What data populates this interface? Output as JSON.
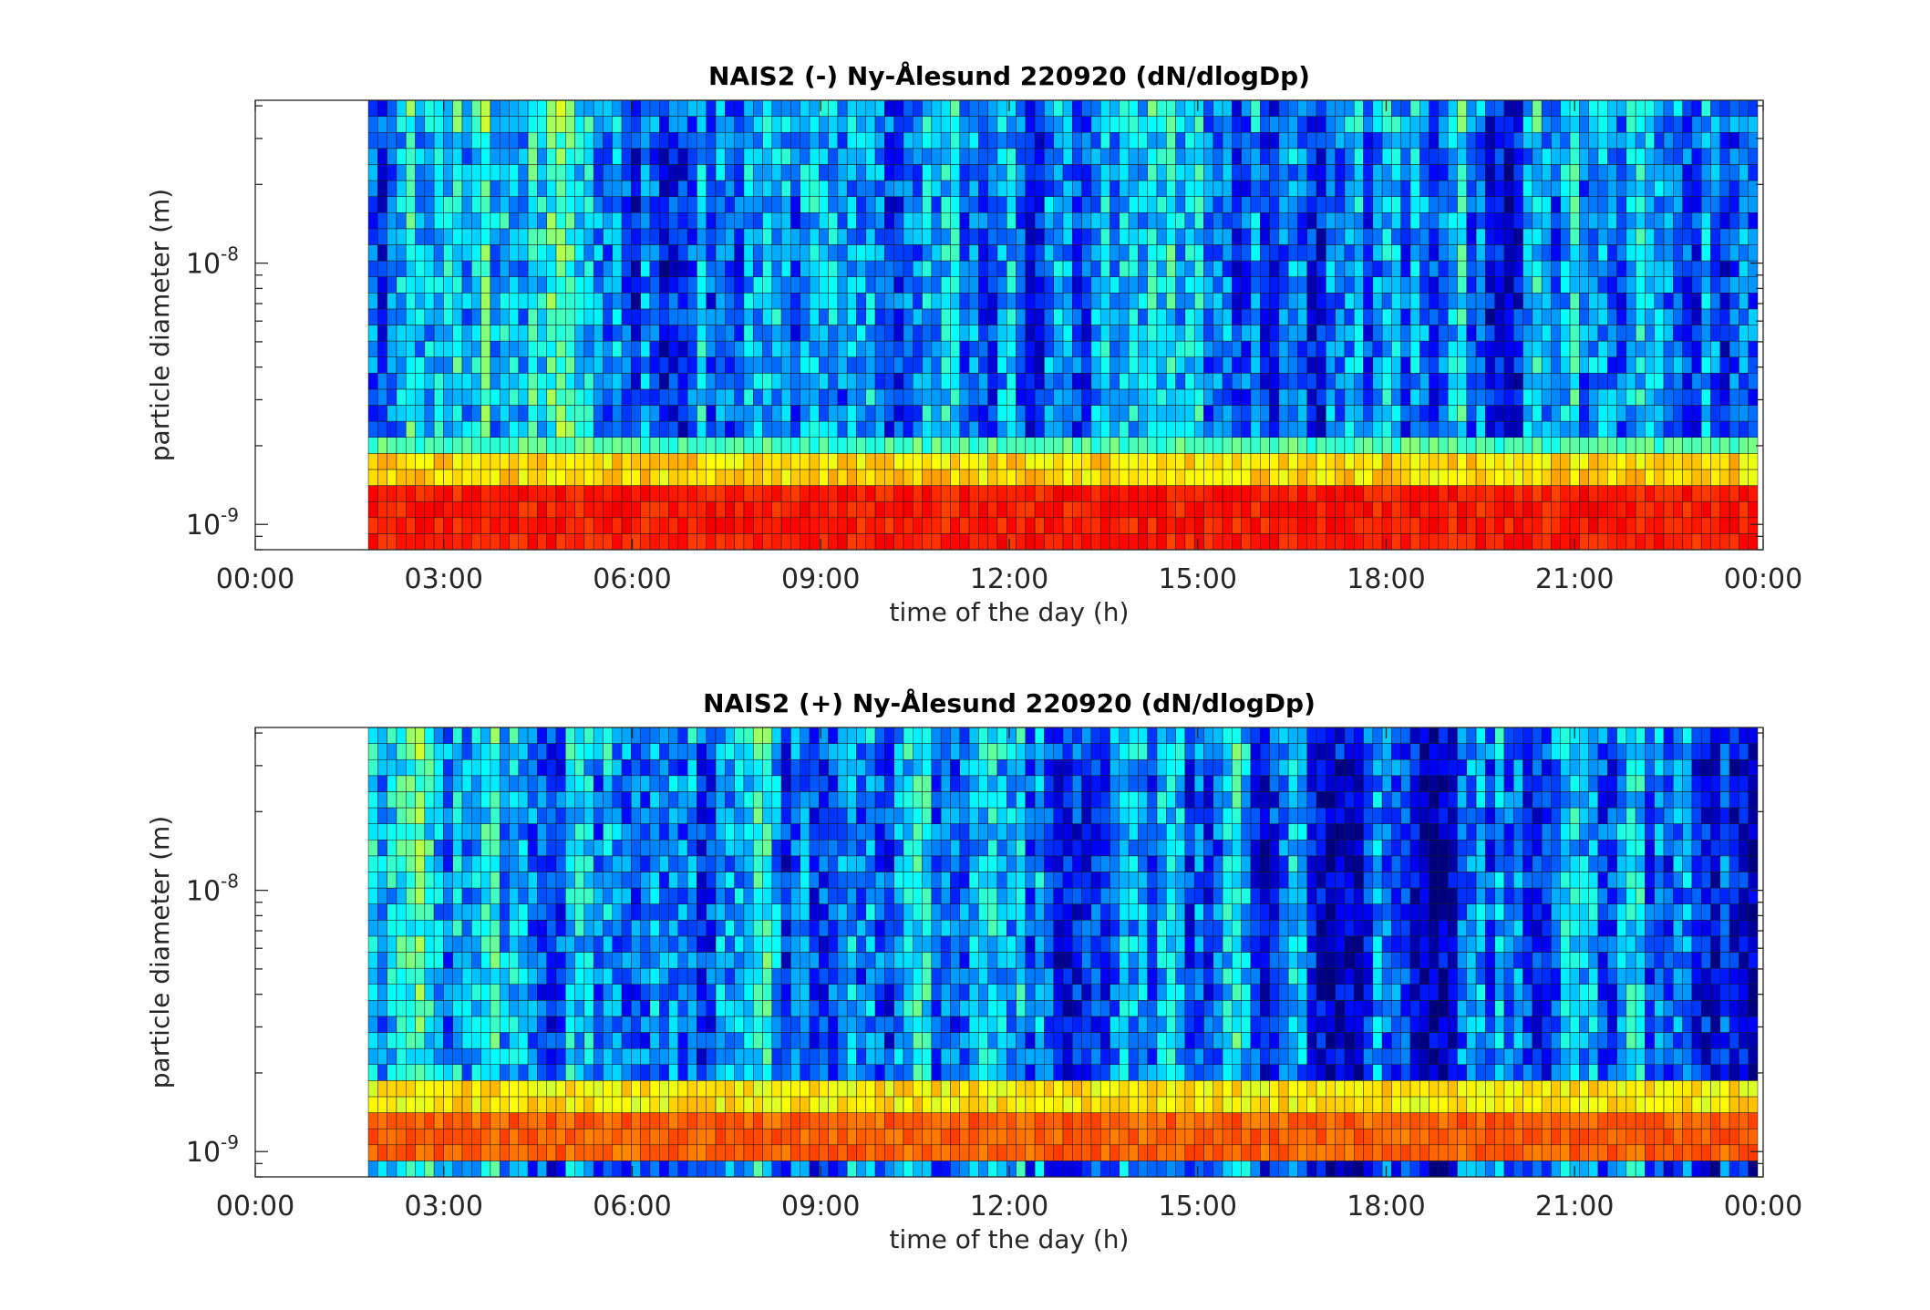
{
  "chart_data": [
    {
      "type": "heatmap",
      "title": "NAIS2 (-) Ny-Ålesund 220920 (dN/dlogDp)",
      "xlabel": "time of the day (h)",
      "ylabel": "particle diameter (m)",
      "x_ticks": [
        "00:00",
        "03:00",
        "06:00",
        "09:00",
        "12:00",
        "15:00",
        "18:00",
        "21:00",
        "00:00"
      ],
      "xlim_hours": [
        0,
        24
      ],
      "y_scale": "log",
      "y_ticks": [
        {
          "base": "10",
          "exp": "-9",
          "value": 1e-09
        },
        {
          "base": "10",
          "exp": "-8",
          "value": 1e-08
        }
      ],
      "ylim": [
        8e-10,
        4.2e-08
      ],
      "data_start_hour": 1.8,
      "colormap": "jet",
      "n_time_bins": 148,
      "n_size_bins": 28,
      "bands": [
        {
          "dmin": 8e-10,
          "dmax": 1.5e-09,
          "level": 0.85,
          "note": "orange/red band"
        },
        {
          "dmin": 1.5e-09,
          "dmax": 1.75e-09,
          "level": 0.66,
          "note": "yellow"
        },
        {
          "dmin": 1.75e-09,
          "dmax": 2.1e-09,
          "level": 0.45,
          "note": "cyan/green"
        },
        {
          "dmin": 2.1e-09,
          "dmax": 4.2e-08,
          "level": 0.28,
          "note": "variable blue, greener before 09:00"
        }
      ],
      "grid": false
    },
    {
      "type": "heatmap",
      "title": "NAIS2 (+) Ny-Ålesund 220920 (dN/dlogDp)",
      "xlabel": "time of the day (h)",
      "ylabel": "particle diameter (m)",
      "x_ticks": [
        "00:00",
        "03:00",
        "06:00",
        "09:00",
        "12:00",
        "15:00",
        "18:00",
        "21:00",
        "00:00"
      ],
      "xlim_hours": [
        0,
        24
      ],
      "y_scale": "log",
      "y_ticks": [
        {
          "base": "10",
          "exp": "-9",
          "value": 1e-09
        },
        {
          "base": "10",
          "exp": "-8",
          "value": 1e-08
        }
      ],
      "ylim": [
        8e-10,
        4.2e-08
      ],
      "data_start_hour": 1.8,
      "colormap": "jet",
      "n_time_bins": 148,
      "n_size_bins": 28,
      "bands": [
        {
          "dmin": 8e-10,
          "dmax": 9.3e-10,
          "level": 0.25,
          "note": "blue/cyan bottom strip"
        },
        {
          "dmin": 9.3e-10,
          "dmax": 1.5e-09,
          "level": 0.78,
          "note": "orange band"
        },
        {
          "dmin": 1.5e-09,
          "dmax": 1.75e-09,
          "level": 0.64,
          "note": "yellow"
        },
        {
          "dmin": 1.75e-09,
          "dmax": 2e-09,
          "level": 0.45,
          "note": "cyan"
        },
        {
          "dmin": 2e-09,
          "dmax": 4.2e-08,
          "level": 0.27,
          "note": "variable blue, greener before 06:00"
        }
      ],
      "grid": false
    }
  ]
}
